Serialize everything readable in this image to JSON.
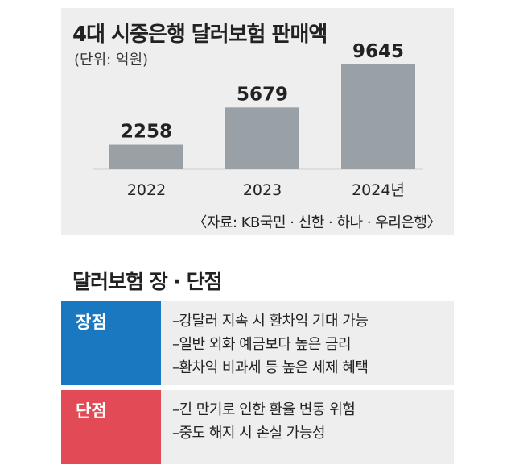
{
  "chart": {
    "title": "4대 시중은행 달러보험 판매액",
    "unit": "(단위: 억원)",
    "source": "〈자료: KB국민 · 신한 · 하나 · 우리은행〉"
  },
  "chart_data": {
    "type": "bar",
    "categories": [
      "2022",
      "2023",
      "2024년"
    ],
    "values": [
      2258,
      5679,
      9645
    ],
    "title": "4대 시중은행 달러보험 판매액",
    "xlabel": "",
    "ylabel": "",
    "ylim": [
      0,
      10000
    ],
    "grid": false,
    "bar_color": "#9aa1a6"
  },
  "comparison": {
    "title": "달러보험 장 · 단점",
    "pros": {
      "label": "장점",
      "color": "#1a78c0",
      "items": [
        "–강달러 지속 시 환차익 기대 가능",
        "–일반 외화 예금보다 높은 금리",
        "–환차익 비과세 등 높은 세제 혜택"
      ]
    },
    "cons": {
      "label": "단점",
      "color": "#e24b55",
      "items": [
        "–긴 만기로 인한 환율 변동 위험",
        "–중도 해지 시 손실 가능성"
      ]
    }
  }
}
